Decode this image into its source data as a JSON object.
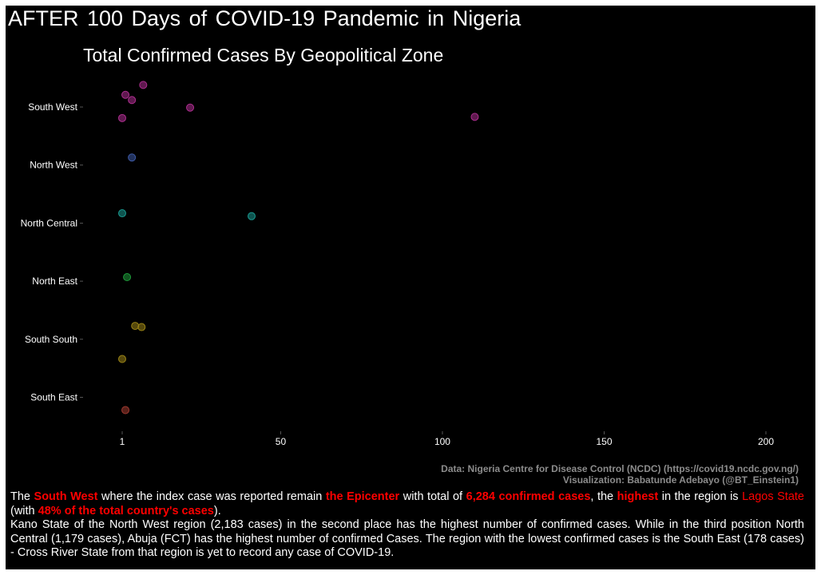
{
  "title": "AFTER 100 Days of COVID-19 Pandemic in Nigeria",
  "chart_data": {
    "type": "scatter",
    "title": "Total Confirmed Cases By Geopolitical Zone",
    "xlabel": "",
    "ylabel": "",
    "x_ticks": [
      "1",
      "50",
      "100",
      "150",
      "200"
    ],
    "x_tick_values": [
      1,
      50,
      100,
      150,
      200
    ],
    "xlim": [
      -10,
      214
    ],
    "categories": [
      "South West",
      "North West",
      "North Central",
      "North East",
      "South South",
      "South East"
    ],
    "grid": false,
    "legend": "none",
    "series": [
      {
        "category": "South West",
        "color": "#ad2e8f",
        "points": [
          {
            "x": 7.5,
            "offset": -0.38
          },
          {
            "x": 2,
            "offset": -0.21
          },
          {
            "x": 4,
            "offset": -0.12
          },
          {
            "x": 22,
            "offset": 0.01
          },
          {
            "x": 110,
            "offset": 0.17
          },
          {
            "x": 1,
            "offset": 0.19
          }
        ]
      },
      {
        "category": "North West",
        "color": "#3e5ba8",
        "points": [
          {
            "x": 4,
            "offset": -0.13
          }
        ]
      },
      {
        "category": "North Central",
        "color": "#1a9990",
        "points": [
          {
            "x": 1,
            "offset": -0.17
          },
          {
            "x": 41,
            "offset": -0.12
          }
        ]
      },
      {
        "category": "North East",
        "color": "#1e9b3a",
        "points": [
          {
            "x": 2.5,
            "offset": -0.07
          }
        ]
      },
      {
        "category": "South South",
        "color": "#9a8416",
        "points": [
          {
            "x": 5,
            "offset": -0.23
          },
          {
            "x": 7,
            "offset": -0.21
          },
          {
            "x": 1,
            "offset": 0.34
          }
        ]
      },
      {
        "category": "South East",
        "color": "#a03a30",
        "points": [
          {
            "x": 2,
            "offset": 0.22
          }
        ]
      }
    ]
  },
  "caption": {
    "line1": "Data: Nigeria Centre for Disease Control (NCDC) (https://covid19.ncdc.gov.ng/)",
    "line2": "Visualization: Babatunde Adebayo (@BT_Einstein1)"
  },
  "description": {
    "p1": {
      "t1": "The",
      "h1": "South West",
      "t2": "where the index case was reported remain",
      "h2": "the Epicenter",
      "t3": "with total of",
      "h3": "6,284 confirmed cases",
      "t4": ", the",
      "h4": "highest",
      "t5": "in the region is",
      "h5": "Lagos State",
      "t6": "(with",
      "h6": "48% of the total country's cases",
      "t7": ")."
    },
    "p2": "Kano State of the North West region (2,183 cases) in the second place has the highest number of confirmed cases. While in the third position North Central (1,179 cases), Abuja (FCT) has the highest number of confirmed Cases. The region with the lowest confirmed cases is the South East (178 cases) - Cross River State from that region is yet to record any case of COVID-19."
  }
}
